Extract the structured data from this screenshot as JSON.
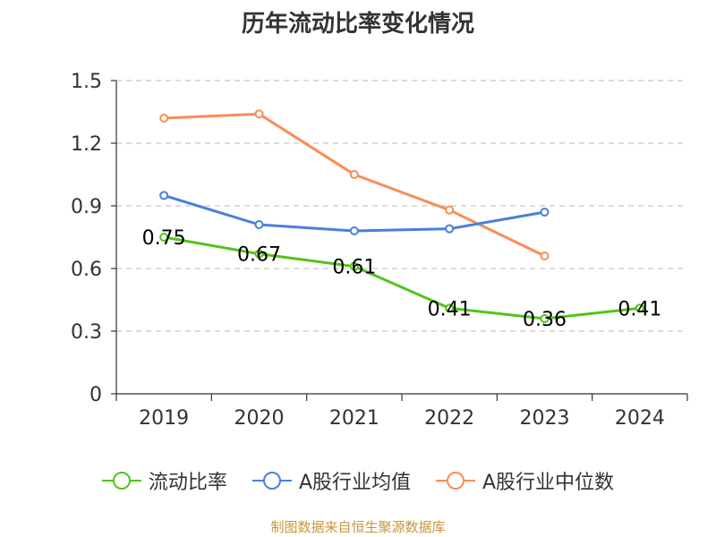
{
  "title": "历年流动比率变化情况",
  "source": "制图数据来自恒生聚源数据库",
  "colors": {
    "axis": "#333333",
    "grid": "#c8c8c8",
    "text": "#333333",
    "source": "#c8963a"
  },
  "chart_data": {
    "type": "line",
    "title": "历年流动比率变化情况",
    "xlabel": "",
    "ylabel": "",
    "categories": [
      "2019",
      "2020",
      "2021",
      "2022",
      "2023",
      "2024"
    ],
    "ylim": [
      0,
      1.5
    ],
    "yticks": [
      "0",
      "0.3",
      "0.6",
      "0.9",
      "1.2",
      "1.5"
    ],
    "grid": true,
    "legend_position": "bottom",
    "series": [
      {
        "name": "流动比率",
        "color": "#52c41a",
        "values": [
          0.75,
          0.67,
          0.61,
          0.41,
          0.36,
          0.41
        ],
        "labels": [
          "0.75",
          "0.67",
          "0.61",
          "0.41",
          "0.36",
          "0.41"
        ]
      },
      {
        "name": "A股行业均值",
        "color": "#4a7fdc",
        "values": [
          0.95,
          0.81,
          0.78,
          0.79,
          0.87,
          null
        ]
      },
      {
        "name": "A股行业中位数",
        "color": "#fb8c55",
        "values": [
          1.32,
          1.34,
          1.05,
          0.88,
          0.66,
          null
        ]
      }
    ]
  }
}
